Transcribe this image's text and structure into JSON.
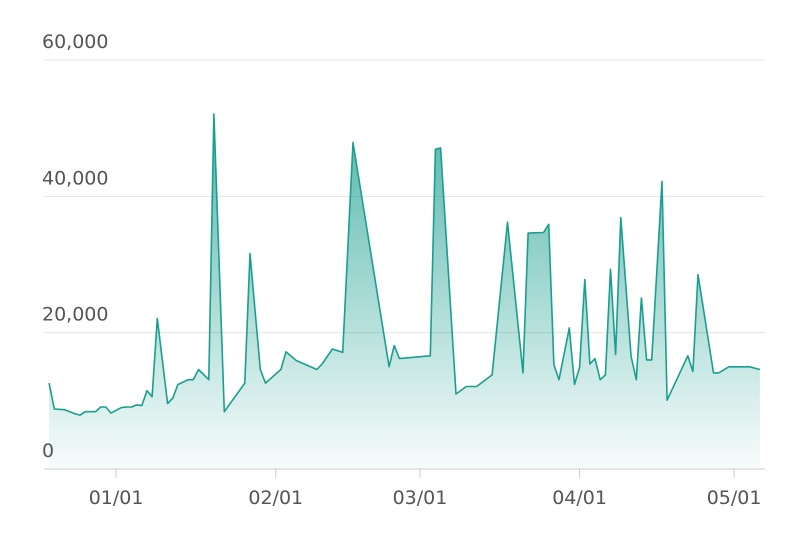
{
  "chart_data": {
    "type": "area",
    "x": [
      "12/19",
      "12/20",
      "12/22",
      "12/24",
      "12/25",
      "12/26",
      "12/28",
      "12/29",
      "12/30",
      "12/31",
      "01/02",
      "01/03",
      "01/04",
      "01/05",
      "01/06",
      "01/07",
      "01/08",
      "01/09",
      "01/11",
      "01/12",
      "01/13",
      "01/15",
      "01/16",
      "01/17",
      "01/19",
      "01/20",
      "01/22",
      "01/26",
      "01/27",
      "01/29",
      "01/30",
      "02/02",
      "02/03",
      "02/05",
      "02/09",
      "02/10",
      "02/12",
      "02/14",
      "02/16",
      "02/23",
      "02/24",
      "02/25",
      "03/03",
      "03/04",
      "03/05",
      "03/08",
      "03/10",
      "03/12",
      "03/15",
      "03/18",
      "03/21",
      "03/22",
      "03/25",
      "03/26",
      "03/27",
      "03/28",
      "03/30",
      "03/31",
      "04/01",
      "04/02",
      "04/03",
      "04/04",
      "04/05",
      "04/06",
      "04/07",
      "04/08",
      "04/09",
      "04/11",
      "04/12",
      "04/13",
      "04/14",
      "04/15",
      "04/17",
      "04/18",
      "04/22",
      "04/23",
      "04/24",
      "04/27",
      "04/28",
      "04/30",
      "05/03",
      "05/04",
      "05/06"
    ],
    "values": [
      12600,
      8800,
      8700,
      8100,
      7900,
      8400,
      8400,
      9100,
      9100,
      8200,
      9000,
      9100,
      9100,
      9400,
      9300,
      11500,
      10600,
      22100,
      9600,
      10400,
      12400,
      13100,
      13100,
      14600,
      13100,
      52100,
      8400,
      12600,
      31600,
      14600,
      12600,
      14600,
      17200,
      15900,
      14600,
      15400,
      17600,
      17100,
      47900,
      15000,
      18100,
      16200,
      16600,
      46900,
      47100,
      11000,
      12100,
      12100,
      13800,
      36200,
      14100,
      34600,
      34700,
      35900,
      15300,
      13100,
      20700,
      12400,
      14900,
      27800,
      15400,
      16200,
      13100,
      13800,
      29300,
      16800,
      36900,
      16500,
      13100,
      25100,
      16000,
      16000,
      42200,
      10100,
      16600,
      14300,
      28500,
      14100,
      14100,
      15000,
      15000,
      15000,
      14600
    ],
    "color": "#1a9e8f",
    "xlim": [
      "12/18",
      "05/07"
    ],
    "xticks": [
      "01/01",
      "02/01",
      "03/01",
      "04/01",
      "05/01"
    ],
    "ylim": [
      0,
      60000
    ],
    "yticks": [
      0,
      {
        "value": 20000,
        "label": "20,000"
      },
      {
        "value": 40000,
        "label": "40,000"
      },
      {
        "value": 60000,
        "label": "60,000"
      }
    ],
    "grid": true
  }
}
